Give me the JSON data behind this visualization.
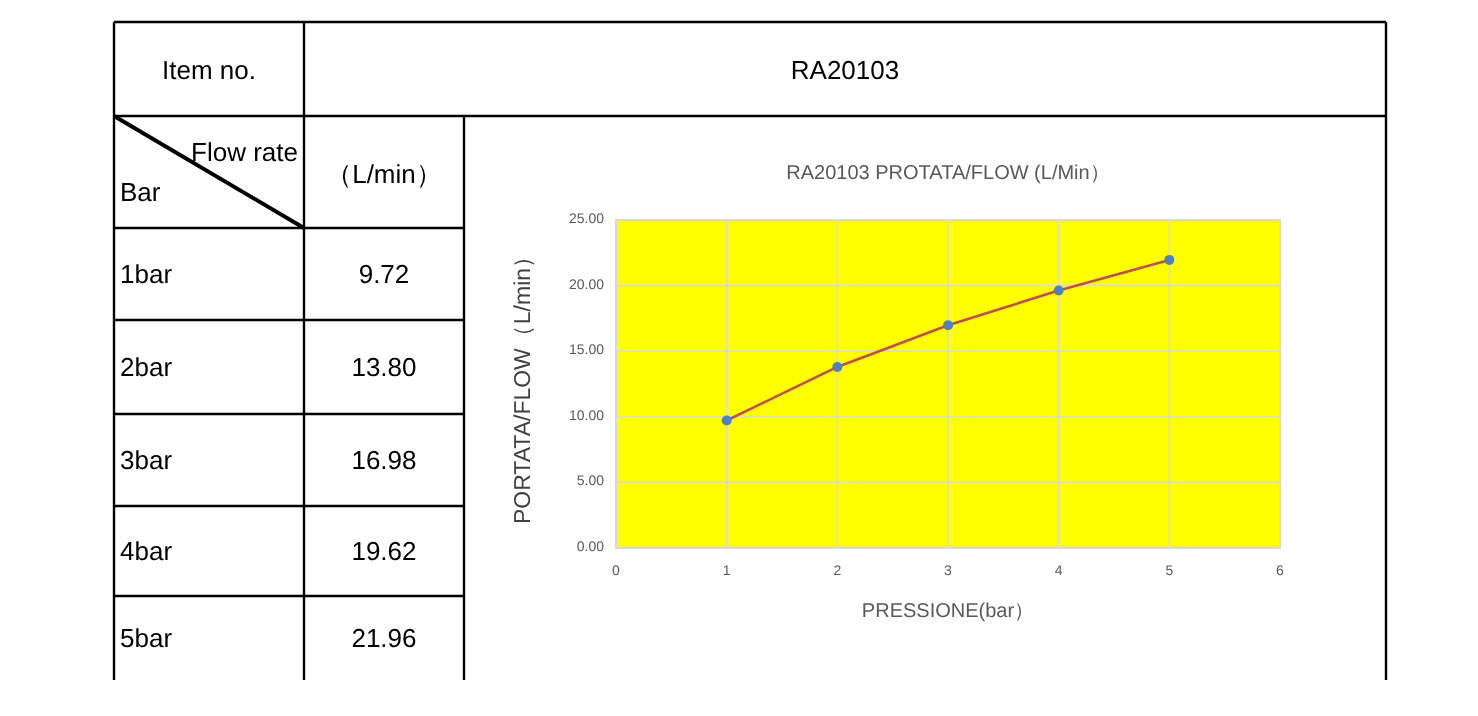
{
  "chart_data": {
    "type": "line",
    "title": "RA20103     PROTATA/FLOW (L/Min）",
    "xlabel": "PRESSIONE(bar）",
    "ylabel": "PORTATA/FLOW（L/min）",
    "x": [
      1,
      2,
      3,
      4,
      5
    ],
    "series": [
      {
        "color": "#c0504d",
        "values": [
          9.72,
          13.8,
          16.98,
          19.62,
          21.96
        ]
      }
    ],
    "xlim": [
      0,
      6
    ],
    "xticks": [
      0,
      1,
      2,
      3,
      4,
      5,
      6
    ],
    "ylim": [
      0,
      25
    ],
    "yticks": [
      {
        "value": 0,
        "label": "0.00"
      },
      {
        "value": 5,
        "label": "5.00"
      },
      {
        "value": 10,
        "label": "10.00"
      },
      {
        "value": 15,
        "label": "15.00"
      },
      {
        "value": 20,
        "label": "20.00"
      },
      {
        "value": 25,
        "label": "25.00"
      }
    ],
    "grid": true,
    "marker": "circle",
    "line_style": "solid",
    "annotations": [
      "Item no.",
      "RA20103",
      "Flow rate",
      "Bar",
      "（L/min）",
      "1bar",
      "2bar",
      "3bar",
      "4bar",
      "5bar",
      "9.72",
      "13.80",
      "16.98",
      "19.62",
      "21.96"
    ]
  }
}
